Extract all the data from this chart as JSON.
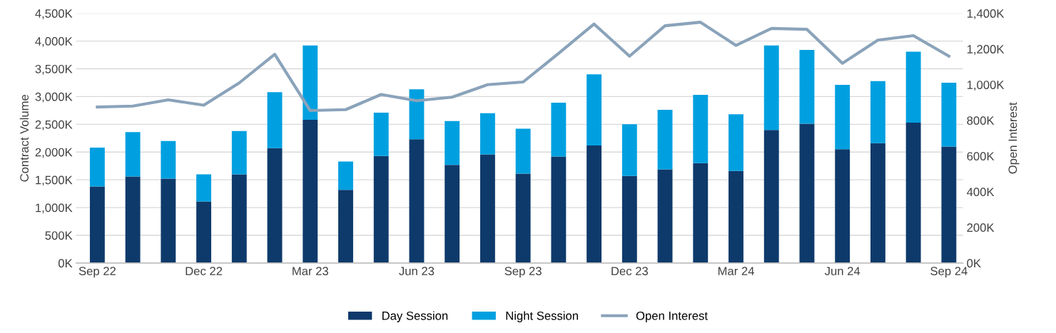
{
  "chart_data": {
    "type": "bar",
    "stacked": true,
    "ylabel": "Contract Volume",
    "y2label": "Open Interest",
    "categories": [
      "Sep 22",
      null,
      null,
      "Dec 22",
      null,
      null,
      "Mar 23",
      null,
      null,
      "Jun 23",
      null,
      null,
      "Sep 23",
      null,
      null,
      "Dec 23",
      null,
      null,
      "Mar 24",
      null,
      null,
      "Jun 24",
      null,
      null,
      "Sep 24"
    ],
    "series": [
      {
        "name": "Day Session",
        "color": "#0e3a6b",
        "values": [
          1380,
          1560,
          1520,
          1110,
          1600,
          2070,
          2580,
          1320,
          1930,
          2230,
          1770,
          1960,
          1610,
          1920,
          2120,
          1570,
          1690,
          1800,
          1660,
          2400,
          2510,
          2050,
          2160,
          2530,
          2100
        ]
      },
      {
        "name": "Night Session",
        "color": "#00a0e0",
        "values": [
          700,
          800,
          680,
          490,
          780,
          1010,
          1340,
          510,
          780,
          900,
          790,
          740,
          810,
          970,
          1280,
          930,
          1070,
          1230,
          1020,
          1520,
          1330,
          1160,
          1120,
          1280,
          1150
        ]
      },
      {
        "name": "Open Interest",
        "type": "line",
        "axis": "y2",
        "color": "#8aa3ba",
        "values": [
          875,
          880,
          915,
          885,
          1010,
          1170,
          855,
          860,
          945,
          910,
          930,
          1000,
          1015,
          1175,
          1340,
          1160,
          1330,
          1350,
          1220,
          1315,
          1310,
          1120,
          1250,
          1275,
          1160
        ]
      }
    ],
    "ylim": [
      0,
      4500
    ],
    "yticks": [
      {
        "value": 0,
        "label": "0K"
      },
      {
        "value": 500,
        "label": "500K"
      },
      {
        "value": 1000,
        "label": "1,000K"
      },
      {
        "value": 1500,
        "label": "1,500K"
      },
      {
        "value": 2000,
        "label": "2,000K"
      },
      {
        "value": 2500,
        "label": "2,500K"
      },
      {
        "value": 3000,
        "label": "3,000K"
      },
      {
        "value": 3500,
        "label": "3,500K"
      },
      {
        "value": 4000,
        "label": "4,000K"
      },
      {
        "value": 4500,
        "label": "4,500K"
      }
    ],
    "y2lim": [
      0,
      1400
    ],
    "y2ticks": [
      {
        "value": 0,
        "label": "0K"
      },
      {
        "value": 200,
        "label": "200K"
      },
      {
        "value": 400,
        "label": "400K"
      },
      {
        "value": 600,
        "label": "600K"
      },
      {
        "value": 800,
        "label": "800K"
      },
      {
        "value": 1000,
        "label": "1,000K"
      },
      {
        "value": 1200,
        "label": "1,200K"
      },
      {
        "value": 1400,
        "label": "1,400K"
      }
    ],
    "grid": "y",
    "legend": "bottom"
  }
}
